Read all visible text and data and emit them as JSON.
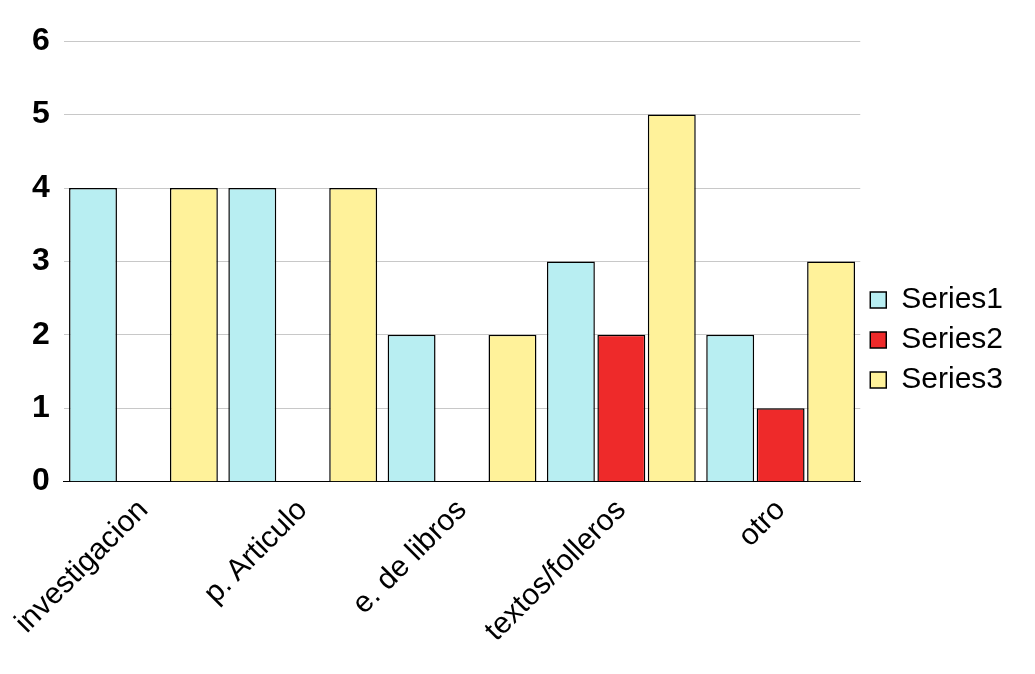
{
  "chart_data": {
    "type": "bar",
    "categories": [
      "investigacion",
      "p. Articulo",
      "e. de libros",
      "textos/folleros",
      "otro"
    ],
    "series": [
      {
        "name": "Series1",
        "color": "#b8eef2",
        "values": [
          4,
          4,
          2,
          3,
          2
        ]
      },
      {
        "name": "Series2",
        "color": "#ee2a2a",
        "values": [
          0,
          0,
          0,
          2,
          1
        ]
      },
      {
        "name": "Series3",
        "color": "#fff29a",
        "values": [
          4,
          4,
          2,
          5,
          3
        ]
      }
    ],
    "ylim": [
      0,
      6
    ],
    "yticks": [
      0,
      1,
      2,
      3,
      4,
      5,
      6
    ],
    "grid": "y",
    "legend": "right"
  }
}
